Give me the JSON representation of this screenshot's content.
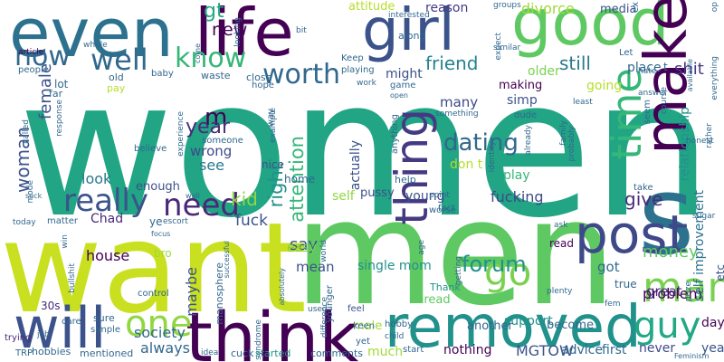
{
  "words": [
    {
      "text": "women",
      "color": "#21a585"
    },
    {
      "text": "men",
      "color": "#5ec962"
    },
    {
      "text": "want",
      "color": "#c9e020"
    },
    {
      "text": "s",
      "color": "#2c728e"
    },
    {
      "text": "even",
      "color": "#2c728e"
    },
    {
      "text": "life",
      "color": "#440154"
    },
    {
      "text": "girl",
      "color": "#3b528b"
    },
    {
      "text": "good",
      "color": "#5ec962"
    },
    {
      "text": "make",
      "color": "#440154"
    },
    {
      "text": "think",
      "color": "#440154"
    },
    {
      "text": "removed",
      "color": "#21918c"
    },
    {
      "text": "will",
      "color": "#3b528b"
    },
    {
      "text": "post",
      "color": "#3e4989"
    },
    {
      "text": "guy",
      "color": "#22a884"
    },
    {
      "text": "man",
      "color": "#7ad151"
    },
    {
      "text": "one",
      "color": "#90d743"
    },
    {
      "text": "really",
      "color": "#3b528b"
    },
    {
      "text": "need",
      "color": "#482878"
    },
    {
      "text": "know",
      "color": "#35b779"
    },
    {
      "text": "worth",
      "color": "#31688e"
    },
    {
      "text": "well",
      "color": "#31688e"
    },
    {
      "text": "now",
      "color": "#31688e"
    },
    {
      "text": "time",
      "color": "#35b779"
    },
    {
      "text": "thing",
      "color": "#443983"
    },
    {
      "text": "go",
      "color": "#7ad151"
    },
    {
      "text": "forum",
      "color": "#21918c"
    },
    {
      "text": "dating",
      "color": "#31688e"
    },
    {
      "text": "woman",
      "color": "#3b528b"
    },
    {
      "text": "female",
      "color": "#3b528b"
    },
    {
      "text": "new",
      "color": "#440154"
    },
    {
      "text": "gt",
      "color": "#22a884"
    },
    {
      "text": "friend",
      "color": "#26828e"
    },
    {
      "text": "still",
      "color": "#2a788e"
    },
    {
      "text": "attention",
      "color": "#35b779"
    },
    {
      "text": "right",
      "color": "#21918c"
    },
    {
      "text": "m",
      "color": "#440154"
    },
    {
      "text": "year",
      "color": "#472d7b"
    },
    {
      "text": "kid",
      "color": "#90d743"
    },
    {
      "text": "fuck",
      "color": "#3b528b"
    },
    {
      "text": "say",
      "color": "#3b528b"
    },
    {
      "text": "money",
      "color": "#5ec962"
    },
    {
      "text": "give",
      "color": "#472d7b"
    },
    {
      "text": "shit",
      "color": "#443983"
    },
    {
      "text": "fucking",
      "color": "#3e4989"
    },
    {
      "text": "wrong",
      "color": "#3e4989"
    },
    {
      "text": "see",
      "color": "#2a788e"
    },
    {
      "text": "look",
      "color": "#2a788e"
    },
    {
      "text": "problem",
      "color": "#440154"
    },
    {
      "text": "got",
      "color": "#31688e"
    },
    {
      "text": "great",
      "color": "#482878"
    },
    {
      "text": "society",
      "color": "#31688e"
    },
    {
      "text": "always",
      "color": "#31688e"
    },
    {
      "text": "maybe",
      "color": "#3b528b"
    },
    {
      "text": "mean",
      "color": "#3b528b"
    },
    {
      "text": "house",
      "color": "#440154"
    },
    {
      "text": "Chad",
      "color": "#482878"
    },
    {
      "text": "single mom",
      "color": "#21918c"
    },
    {
      "text": "support",
      "color": "#21918c"
    },
    {
      "text": "MGTOW",
      "color": "#3b528b"
    },
    {
      "text": "advice",
      "color": "#31688e"
    },
    {
      "text": "first",
      "color": "#31688e"
    },
    {
      "text": "never",
      "color": "#3e4989"
    },
    {
      "text": "day",
      "color": "#440154"
    },
    {
      "text": "yeah",
      "color": "#3b528b"
    },
    {
      "text": "etc",
      "color": "#3b528b"
    },
    {
      "text": "self improvement",
      "color": "#2c728e"
    },
    {
      "text": "relationship",
      "color": "#21918c"
    },
    {
      "text": "divorce",
      "color": "#a0da39"
    },
    {
      "text": "reason",
      "color": "#443983"
    },
    {
      "text": "attitude",
      "color": "#b5de2b"
    },
    {
      "text": "media",
      "color": "#3b528b"
    },
    {
      "text": "place",
      "color": "#31688e"
    },
    {
      "text": "older",
      "color": "#7ad151"
    },
    {
      "text": "might",
      "color": "#3b528b"
    },
    {
      "text": "going",
      "color": "#b5de2b"
    },
    {
      "text": "making",
      "color": "#440154"
    },
    {
      "text": "simp",
      "color": "#3b528b"
    },
    {
      "text": "many",
      "color": "#3e4989"
    },
    {
      "text": "actually",
      "color": "#3b528b"
    },
    {
      "text": "young",
      "color": "#3b528b"
    },
    {
      "text": "pussy",
      "color": "#3b528b"
    },
    {
      "text": "self",
      "color": "#90d743"
    },
    {
      "text": "don t",
      "color": "#b5de2b"
    },
    {
      "text": "play",
      "color": "#35b779"
    },
    {
      "text": "enough",
      "color": "#3b528b"
    },
    {
      "text": "home",
      "color": "#31688e"
    },
    {
      "text": "nice",
      "color": "#3b528b"
    },
    {
      "text": "easy",
      "color": "#7ad151"
    },
    {
      "text": "male",
      "color": "#a0da39"
    },
    {
      "text": "much",
      "color": "#a0da39"
    },
    {
      "text": "nothing",
      "color": "#440154"
    },
    {
      "text": "thread",
      "color": "#5ec962"
    },
    {
      "text": "another",
      "color": "#31688e"
    },
    {
      "text": "become",
      "color": "#31688e"
    },
    {
      "text": "true",
      "color": "#31688e"
    },
    {
      "text": "Thank",
      "color": "#21918c"
    },
    {
      "text": "read",
      "color": "#440154"
    },
    {
      "text": "bro",
      "color": "#a0da39"
    },
    {
      "text": "30s",
      "color": "#482878"
    },
    {
      "text": "hobbies",
      "color": "#31688e"
    },
    {
      "text": "mentioned",
      "color": "#31688e"
    },
    {
      "text": "comments",
      "color": "#31688e"
    },
    {
      "text": "started",
      "color": "#21918c"
    },
    {
      "text": "feel",
      "color": "#3b528b"
    },
    {
      "text": "manosphere",
      "color": "#31688e"
    },
    {
      "text": "trying",
      "color": "#482878"
    },
    {
      "text": "lot",
      "color": "#31688e"
    },
    {
      "text": "far",
      "color": "#31688e"
    },
    {
      "text": "old",
      "color": "#31688e"
    },
    {
      "text": "pay",
      "color": "#b5de2b"
    },
    {
      "text": "baby",
      "color": "#31688e"
    },
    {
      "text": "people",
      "color": "#31688e"
    },
    {
      "text": "article",
      "color": "#440154"
    },
    {
      "text": "whole",
      "color": "#31688e"
    },
    {
      "text": "come",
      "color": "#31688e"
    },
    {
      "text": "waste",
      "color": "#31688e"
    },
    {
      "text": "looking",
      "color": "#31688e"
    },
    {
      "text": "bit",
      "color": "#31688e"
    },
    {
      "text": "along",
      "color": "#31688e"
    },
    {
      "text": "close",
      "color": "#31688e"
    },
    {
      "text": "Keep",
      "color": "#31688e"
    },
    {
      "text": "playing",
      "color": "#31688e"
    },
    {
      "text": "game",
      "color": "#31688e"
    },
    {
      "text": "work",
      "color": "#31688e"
    },
    {
      "text": "open",
      "color": "#31688e"
    },
    {
      "text": "hope",
      "color": "#31688e"
    },
    {
      "text": "way",
      "color": "#31688e"
    },
    {
      "text": "called",
      "color": "#31688e"
    },
    {
      "text": "believe",
      "color": "#31688e"
    },
    {
      "text": "someone",
      "color": "#31688e"
    },
    {
      "text": "successful",
      "color": "#31688e"
    },
    {
      "text": "experience",
      "color": "#31688e"
    },
    {
      "text": "mode",
      "color": "#31688e"
    },
    {
      "text": "suck",
      "color": "#31688e"
    },
    {
      "text": "today",
      "color": "#31688e"
    },
    {
      "text": "matter",
      "color": "#31688e"
    },
    {
      "text": "ye",
      "color": "#31688e"
    },
    {
      "text": "escort",
      "color": "#31688e"
    },
    {
      "text": "focus",
      "color": "#31688e"
    },
    {
      "text": "wall",
      "color": "#31688e"
    },
    {
      "text": "win",
      "color": "#31688e"
    },
    {
      "text": "bullshit",
      "color": "#31688e"
    },
    {
      "text": "control",
      "color": "#31688e"
    },
    {
      "text": "care",
      "color": "#31688e"
    },
    {
      "text": "sure",
      "color": "#31688e"
    },
    {
      "text": "simple",
      "color": "#31688e"
    },
    {
      "text": "job",
      "color": "#31688e"
    },
    {
      "text": "TRP",
      "color": "#31688e"
    },
    {
      "text": "idea",
      "color": "#31688e"
    },
    {
      "text": "cuck",
      "color": "#31688e"
    },
    {
      "text": "syndrome",
      "color": "#31688e"
    },
    {
      "text": "used",
      "color": "#31688e"
    },
    {
      "text": "world",
      "color": "#31688e"
    },
    {
      "text": "absolutely",
      "color": "#31688e"
    },
    {
      "text": "difference",
      "color": "#31688e"
    },
    {
      "text": "keen",
      "color": "#31688e"
    },
    {
      "text": "yet",
      "color": "#31688e"
    },
    {
      "text": "child",
      "color": "#31688e"
    },
    {
      "text": "hobby",
      "color": "#31688e"
    },
    {
      "text": "start",
      "color": "#31688e"
    },
    {
      "text": "younger",
      "color": "#31688e"
    },
    {
      "text": "age",
      "color": "#31688e"
    },
    {
      "text": "fact",
      "color": "#31688e"
    },
    {
      "text": "point",
      "color": "#31688e"
    },
    {
      "text": "worse",
      "color": "#31688e"
    },
    {
      "text": "help",
      "color": "#31688e"
    },
    {
      "text": "anything",
      "color": "#31688e"
    },
    {
      "text": "getting",
      "color": "#31688e"
    },
    {
      "text": "ask",
      "color": "#31688e"
    },
    {
      "text": "plenty",
      "color": "#31688e"
    },
    {
      "text": "fem",
      "color": "#31688e"
    },
    {
      "text": "least",
      "color": "#31688e"
    },
    {
      "text": "probably",
      "color": "#31688e"
    },
    {
      "text": "family",
      "color": "#31688e"
    },
    {
      "text": "something",
      "color": "#31688e"
    },
    {
      "text": "identity",
      "color": "#31688e"
    },
    {
      "text": "already",
      "color": "#31688e"
    },
    {
      "text": "dude",
      "color": "#31688e"
    },
    {
      "text": "similar",
      "color": "#31688e"
    },
    {
      "text": "groups",
      "color": "#31688e"
    },
    {
      "text": "expect",
      "color": "#31688e"
    },
    {
      "text": "interested",
      "color": "#31688e"
    },
    {
      "text": "Let",
      "color": "#31688e"
    },
    {
      "text": "hate",
      "color": "#31688e"
    },
    {
      "text": "answer",
      "color": "#31688e"
    },
    {
      "text": "seem",
      "color": "#31688e"
    },
    {
      "text": "course",
      "color": "#31688e"
    },
    {
      "text": "rather",
      "color": "#31688e"
    },
    {
      "text": "everything",
      "color": "#31688e"
    },
    {
      "text": "available",
      "color": "#31688e"
    },
    {
      "text": "Feminism",
      "color": "#31688e"
    },
    {
      "text": "honest",
      "color": "#31688e"
    },
    {
      "text": "sugar",
      "color": "#31688e"
    },
    {
      "text": "take",
      "color": "#31688e"
    },
    {
      "text": "prize",
      "color": "#31688e"
    },
    {
      "text": "example",
      "color": "#31688e"
    },
    {
      "text": "response",
      "color": "#31688e"
    },
    {
      "text": "t",
      "color": "#31688e"
    },
    {
      "text": "ex",
      "color": "#31688e"
    },
    {
      "text": "op",
      "color": "#31688e"
    }
  ]
}
